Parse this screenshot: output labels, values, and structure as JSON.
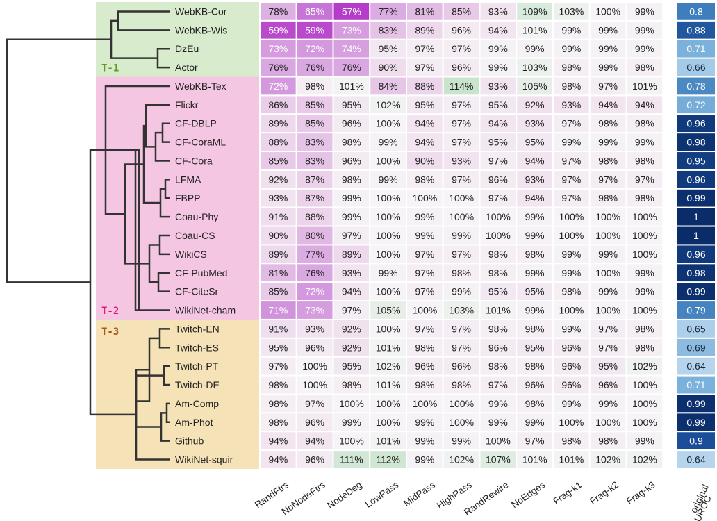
{
  "chart_data": {
    "type": "heatmap",
    "columns": [
      "RandFtrs",
      "NoNodeFtrs",
      "NodeDeg",
      "LowPass",
      "MidPass",
      "HighPass",
      "RandRewire",
      "NoEdges",
      "Frag-k1",
      "Frag-k2",
      "Frag-k3"
    ],
    "auroc_label": "original AUROC",
    "groups": [
      {
        "label": "T-1",
        "color": "#d8ebcc",
        "text_color": "#5f9a1f"
      },
      {
        "label": "T-2",
        "color": "#f4c6e1",
        "text_color": "#e0197d"
      },
      {
        "label": "T-3",
        "color": "#f5e2b6",
        "text_color": "#a8581b"
      }
    ],
    "rows": [
      {
        "name": "WebKB-Cor",
        "group": 0,
        "values": [
          78,
          65,
          57,
          77,
          81,
          85,
          93,
          109,
          103,
          100,
          99
        ],
        "auroc": 0.8
      },
      {
        "name": "WebKB-Wis",
        "group": 0,
        "values": [
          59,
          59,
          73,
          83,
          89,
          96,
          94,
          101,
          99,
          99,
          99
        ],
        "auroc": 0.88
      },
      {
        "name": "DzEu",
        "group": 0,
        "values": [
          73,
          72,
          74,
          95,
          97,
          97,
          99,
          99,
          99,
          99,
          99
        ],
        "auroc": 0.71
      },
      {
        "name": "Actor",
        "group": 0,
        "values": [
          76,
          76,
          76,
          90,
          97,
          96,
          99,
          103,
          98,
          99,
          98
        ],
        "auroc": 0.66
      },
      {
        "name": "WebKB-Tex",
        "group": 1,
        "values": [
          72,
          98,
          101,
          84,
          88,
          114,
          93,
          105,
          98,
          97,
          101
        ],
        "auroc": 0.78
      },
      {
        "name": "Flickr",
        "group": 1,
        "values": [
          86,
          85,
          95,
          102,
          95,
          97,
          95,
          92,
          93,
          94,
          94
        ],
        "auroc": 0.72
      },
      {
        "name": "CF-DBLP",
        "group": 1,
        "values": [
          89,
          85,
          96,
          100,
          94,
          97,
          94,
          93,
          97,
          98,
          98
        ],
        "auroc": 0.96
      },
      {
        "name": "CF-CoraML",
        "group": 1,
        "values": [
          88,
          83,
          98,
          99,
          94,
          97,
          95,
          95,
          99,
          99,
          99
        ],
        "auroc": 0.98
      },
      {
        "name": "CF-Cora",
        "group": 1,
        "values": [
          85,
          83,
          96,
          100,
          90,
          93,
          97,
          94,
          97,
          98,
          98
        ],
        "auroc": 0.95
      },
      {
        "name": "LFMA",
        "group": 1,
        "values": [
          92,
          87,
          98,
          99,
          98,
          97,
          96,
          93,
          97,
          97,
          97
        ],
        "auroc": 0.96
      },
      {
        "name": "FBPP",
        "group": 1,
        "values": [
          93,
          87,
          99,
          100,
          100,
          100,
          97,
          94,
          97,
          98,
          98
        ],
        "auroc": 0.99
      },
      {
        "name": "Coau-Phy",
        "group": 1,
        "values": [
          91,
          88,
          99,
          100,
          99,
          100,
          100,
          99,
          100,
          100,
          100
        ],
        "auroc": 1
      },
      {
        "name": "Coau-CS",
        "group": 1,
        "values": [
          90,
          80,
          97,
          100,
          99,
          99,
          100,
          99,
          100,
          100,
          100
        ],
        "auroc": 1
      },
      {
        "name": "WikiCS",
        "group": 1,
        "values": [
          89,
          77,
          89,
          100,
          97,
          97,
          98,
          98,
          99,
          99,
          100
        ],
        "auroc": 0.96
      },
      {
        "name": "CF-PubMed",
        "group": 1,
        "values": [
          81,
          76,
          93,
          99,
          97,
          98,
          98,
          99,
          99,
          100,
          99
        ],
        "auroc": 0.98
      },
      {
        "name": "CF-CiteSr",
        "group": 1,
        "values": [
          85,
          72,
          94,
          100,
          97,
          99,
          95,
          95,
          98,
          99,
          99
        ],
        "auroc": 0.99
      },
      {
        "name": "WikiNet-cham",
        "group": 1,
        "values": [
          71,
          73,
          97,
          105,
          100,
          103,
          101,
          99,
          100,
          100,
          100
        ],
        "auroc": 0.79
      },
      {
        "name": "Twitch-EN",
        "group": 2,
        "values": [
          91,
          93,
          92,
          100,
          97,
          97,
          98,
          98,
          99,
          97,
          98
        ],
        "auroc": 0.65
      },
      {
        "name": "Twitch-ES",
        "group": 2,
        "values": [
          95,
          96,
          92,
          101,
          98,
          97,
          96,
          95,
          96,
          97,
          98
        ],
        "auroc": 0.69
      },
      {
        "name": "Twitch-PT",
        "group": 2,
        "values": [
          97,
          100,
          95,
          102,
          96,
          96,
          98,
          98,
          96,
          95,
          102
        ],
        "auroc": 0.64
      },
      {
        "name": "Twitch-DE",
        "group": 2,
        "values": [
          98,
          100,
          98,
          101,
          98,
          98,
          97,
          96,
          96,
          96,
          100
        ],
        "auroc": 0.71
      },
      {
        "name": "Am-Comp",
        "group": 2,
        "values": [
          98,
          97,
          100,
          100,
          100,
          100,
          99,
          98,
          99,
          99,
          100
        ],
        "auroc": 0.99
      },
      {
        "name": "Am-Phot",
        "group": 2,
        "values": [
          98,
          96,
          99,
          100,
          99,
          100,
          99,
          99,
          100,
          100,
          100
        ],
        "auroc": 0.99
      },
      {
        "name": "Github",
        "group": 2,
        "values": [
          94,
          94,
          100,
          101,
          99,
          99,
          100,
          97,
          98,
          98,
          99
        ],
        "auroc": 0.9
      },
      {
        "name": "WikiNet-squir",
        "group": 2,
        "values": [
          94,
          96,
          111,
          112,
          99,
          102,
          107,
          101,
          101,
          102,
          102
        ],
        "auroc": 0.64
      }
    ]
  }
}
